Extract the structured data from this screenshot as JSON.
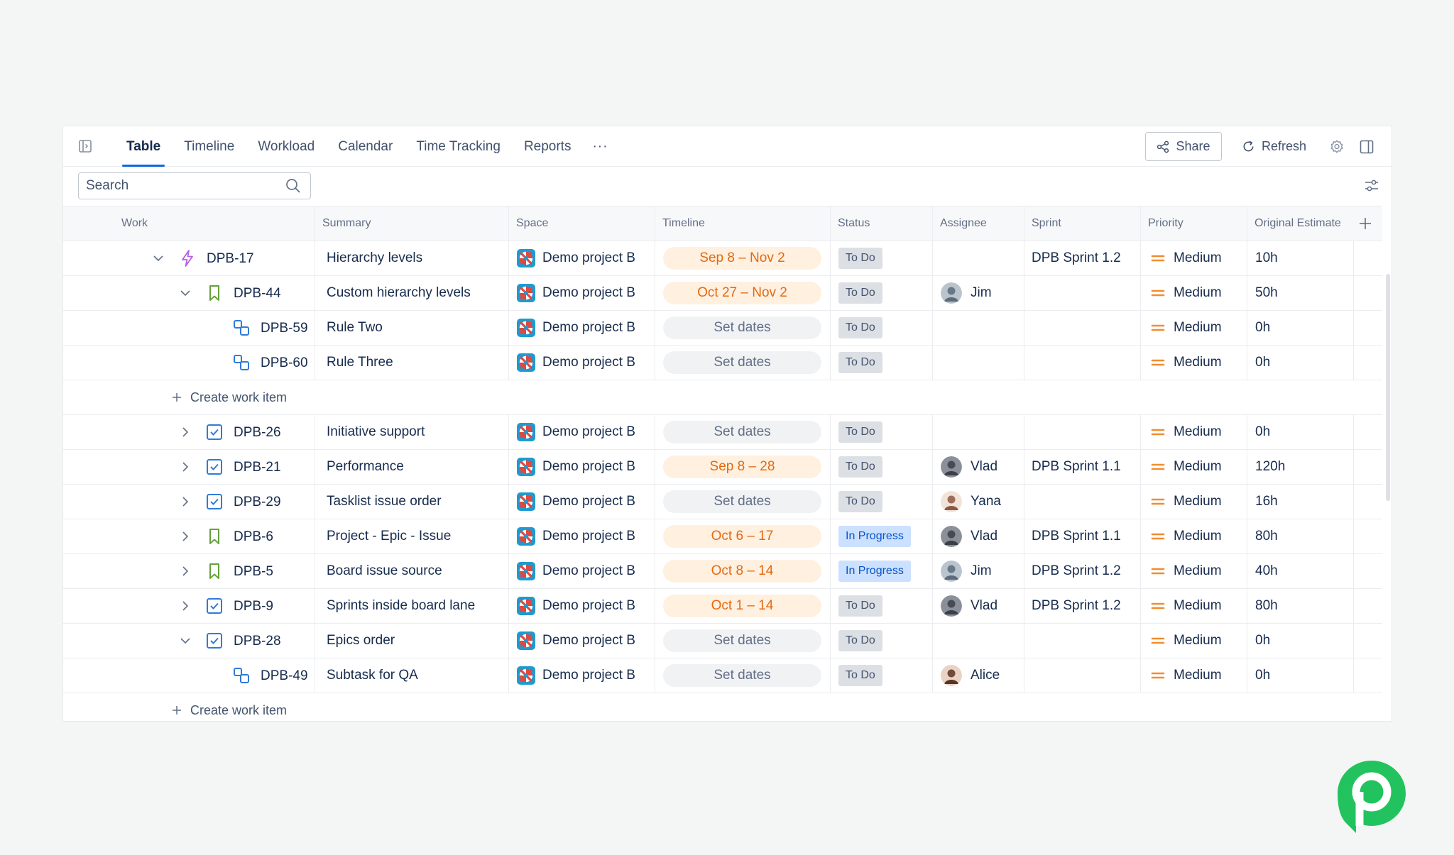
{
  "tabs": [
    {
      "label": "Table",
      "active": true
    },
    {
      "label": "Timeline"
    },
    {
      "label": "Workload"
    },
    {
      "label": "Calendar"
    },
    {
      "label": "Time Tracking"
    },
    {
      "label": "Reports"
    }
  ],
  "more_label": "···",
  "toolbar": {
    "share_label": "Share",
    "refresh_label": "Refresh"
  },
  "search": {
    "placeholder": "Search",
    "value": ""
  },
  "columns": [
    "Work",
    "Summary",
    "Space",
    "Timeline",
    "Status",
    "Assignee",
    "Sprint",
    "Priority",
    "Original Estimate"
  ],
  "create_label": "Create work item",
  "rows": [
    {
      "key": "DPB-17",
      "type": "initiative",
      "chevron": "down",
      "summary": "Hierarchy levels",
      "space": "Demo project B",
      "timeline": "Sep 8 – Nov 2",
      "status": "To Do",
      "assignee": "",
      "sprint": "DPB Sprint 1.2",
      "priority": "Medium",
      "estimate": "10h"
    },
    {
      "key": "DPB-44",
      "type": "story",
      "chevron": "down",
      "summary": "Custom hierarchy levels",
      "space": "Demo project B",
      "timeline": "Oct 27 – Nov 2",
      "status": "To Do",
      "assignee": "Jim",
      "sprint": "",
      "priority": "Medium",
      "estimate": "50h"
    },
    {
      "key": "DPB-59",
      "type": "subtask",
      "chevron": "",
      "summary": "Rule Two",
      "space": "Demo project B",
      "timeline": "Set dates",
      "status": "To Do",
      "assignee": "",
      "sprint": "",
      "priority": "Medium",
      "estimate": "0h"
    },
    {
      "key": "DPB-60",
      "type": "subtask",
      "chevron": "",
      "summary": "Rule Three",
      "space": "Demo project B",
      "timeline": "Set dates",
      "status": "To Do",
      "assignee": "",
      "sprint": "",
      "priority": "Medium",
      "estimate": "0h"
    },
    {
      "key": "DPB-26",
      "type": "task",
      "chevron": "right",
      "summary": "Initiative support",
      "space": "Demo project B",
      "timeline": "Set dates",
      "status": "To Do",
      "assignee": "",
      "sprint": "",
      "priority": "Medium",
      "estimate": "0h"
    },
    {
      "key": "DPB-21",
      "type": "task",
      "chevron": "right",
      "summary": "Performance",
      "space": "Demo project B",
      "timeline": "Sep 8 – 28",
      "status": "To Do",
      "assignee": "Vlad",
      "sprint": "DPB Sprint 1.1",
      "priority": "Medium",
      "estimate": "120h"
    },
    {
      "key": "DPB-29",
      "type": "task",
      "chevron": "right",
      "summary": "Tasklist issue order",
      "space": "Demo project B",
      "timeline": "Set dates",
      "status": "To Do",
      "assignee": "Yana",
      "sprint": "",
      "priority": "Medium",
      "estimate": "16h"
    },
    {
      "key": "DPB-6",
      "type": "story",
      "chevron": "right",
      "summary": "Project - Epic - Issue",
      "space": "Demo project B",
      "timeline": "Oct 6 – 17",
      "status": "In Progress",
      "assignee": "Vlad",
      "sprint": "DPB Sprint 1.1",
      "priority": "Medium",
      "estimate": "80h"
    },
    {
      "key": "DPB-5",
      "type": "story",
      "chevron": "right",
      "summary": "Board issue source",
      "space": "Demo project B",
      "timeline": "Oct 8 – 14",
      "status": "In Progress",
      "assignee": "Jim",
      "sprint": "DPB Sprint 1.2",
      "priority": "Medium",
      "estimate": "40h"
    },
    {
      "key": "DPB-9",
      "type": "task",
      "chevron": "right",
      "summary": "Sprints inside board lane",
      "space": "Demo project B",
      "timeline": "Oct 1 – 14",
      "status": "To Do",
      "assignee": "Vlad",
      "sprint": "DPB Sprint 1.2",
      "priority": "Medium",
      "estimate": "80h"
    },
    {
      "key": "DPB-28",
      "type": "task",
      "chevron": "down",
      "summary": "Epics order",
      "space": "Demo project B",
      "timeline": "Set dates",
      "status": "To Do",
      "assignee": "",
      "sprint": "",
      "priority": "Medium",
      "estimate": "0h"
    },
    {
      "key": "DPB-49",
      "type": "subtask",
      "chevron": "",
      "summary": "Subtask for QA",
      "space": "Demo project B",
      "timeline": "Set dates",
      "status": "To Do",
      "assignee": "Alice",
      "sprint": "",
      "priority": "Medium",
      "estimate": "0h"
    }
  ],
  "colors": {
    "accent": "#0c66e4",
    "initiative": "#b45ee8",
    "story": "#63a33a",
    "task": "#2f7bd8",
    "subtask": "#2f7bd8",
    "timeline_dated_bg": "#fff0e0",
    "timeline_dated_text": "#e56910",
    "status_todo_bg": "#dcdfe4",
    "status_inprogress_bg": "#cce0ff",
    "priority_medium": "#f18d2f",
    "brand": "#22c35e"
  }
}
